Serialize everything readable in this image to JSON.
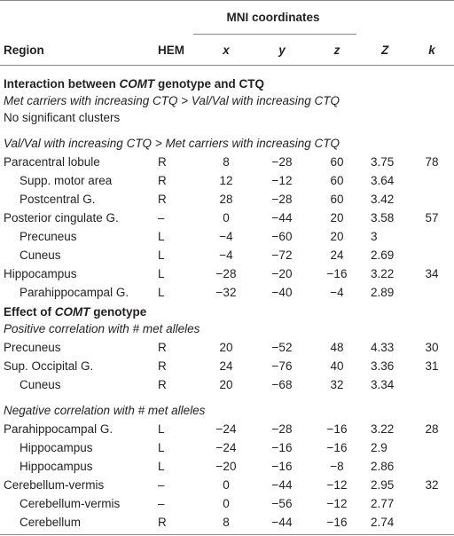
{
  "table": {
    "header": {
      "group": "MNI coordinates",
      "columns": [
        "Region",
        "HEM",
        "x",
        "y",
        "z",
        "Z",
        "k"
      ]
    },
    "sections": [
      {
        "title": [
          "Interaction between ",
          "COMT",
          " genotype and CTQ"
        ],
        "subsections": [
          {
            "label": "Met carriers with increasing CTQ > Val/Val with increasing CTQ",
            "note": "No significant clusters",
            "clusters": []
          },
          {
            "label": "Val/Val with increasing CTQ > Met carriers with increasing CTQ",
            "clusters": [
              {
                "cells": [
                  "Paracentral lobule",
                  "R",
                  "8",
                  "−28",
                  "60",
                  "3.75",
                  "78"
                ],
                "sub": [
                  [
                    "Supp. motor area",
                    "R",
                    "12",
                    "−12",
                    "60",
                    "3.64"
                  ],
                  [
                    "Postcentral G.",
                    "R",
                    "28",
                    "−28",
                    "60",
                    "3.42"
                  ]
                ]
              },
              {
                "cells": [
                  "Posterior cingulate G.",
                  "–",
                  "0",
                  "−44",
                  "20",
                  "3.58",
                  "57"
                ],
                "sub": [
                  [
                    "Precuneus",
                    "L",
                    "−4",
                    "−60",
                    "20",
                    "3"
                  ],
                  [
                    "Cuneus",
                    "L",
                    "−4",
                    "−72",
                    "24",
                    "2.69"
                  ]
                ]
              },
              {
                "cells": [
                  "Hippocampus",
                  "L",
                  "−28",
                  "−20",
                  "−16",
                  "3.22",
                  "34"
                ],
                "sub": [
                  [
                    "Parahippocampal G.",
                    "L",
                    "−32",
                    "−40",
                    "−4",
                    "2.89"
                  ]
                ]
              }
            ]
          }
        ]
      },
      {
        "title": [
          "Effect of ",
          "COMT",
          " genotype"
        ],
        "subsections": [
          {
            "label": "Positive correlation with # met alleles",
            "clusters": [
              {
                "cells": [
                  "Precuneus",
                  "R",
                  "20",
                  "−52",
                  "48",
                  "4.33",
                  "30"
                ],
                "sub": []
              },
              {
                "cells": [
                  "Sup. Occipital G.",
                  "R",
                  "24",
                  "−76",
                  "40",
                  "3.36",
                  "31"
                ],
                "sub": [
                  [
                    "Cuneus",
                    "R",
                    "20",
                    "−68",
                    "32",
                    "3.34"
                  ]
                ]
              }
            ]
          },
          {
            "label": "Negative correlation with # met alleles",
            "clusters": [
              {
                "cells": [
                  "Parahippocampal G.",
                  "L",
                  "−24",
                  "−28",
                  "−16",
                  "3.22",
                  "28"
                ],
                "sub": [
                  [
                    "Hippocampus",
                    "L",
                    "−24",
                    "−16",
                    "−16",
                    "2.9"
                  ],
                  [
                    "Hippocampus",
                    "L",
                    "−20",
                    "−16",
                    "−8",
                    "2.86"
                  ]
                ]
              },
              {
                "cells": [
                  "Cerebellum-vermis",
                  "–",
                  "0",
                  "−44",
                  "−12",
                  "2.95",
                  "32"
                ],
                "sub": [
                  [
                    "Cerebellum-vermis",
                    "–",
                    "0",
                    "−56",
                    "−12",
                    "2.77"
                  ],
                  [
                    "Cerebellum",
                    "R",
                    "8",
                    "−44",
                    "−16",
                    "2.74"
                  ]
                ]
              }
            ]
          }
        ]
      }
    ]
  }
}
